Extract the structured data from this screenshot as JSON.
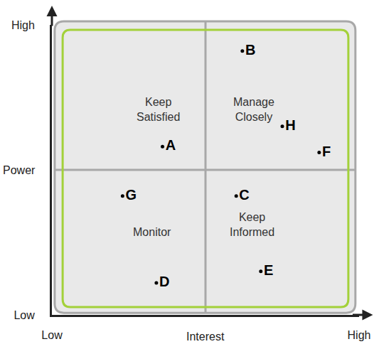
{
  "chart_data": {
    "type": "scatter",
    "x_label": "Interest",
    "y_label": "Power",
    "xlim": [
      0,
      10
    ],
    "ylim": [
      0,
      10
    ],
    "xticks": [
      {
        "value": 0,
        "label": "Low"
      },
      {
        "value": 10,
        "label": "High"
      }
    ],
    "yticks": [
      {
        "value": 0,
        "label": "Low"
      },
      {
        "value": 10,
        "label": "High"
      }
    ],
    "grid": false,
    "annotations": [
      "Keep Satisfied",
      "Manage Closely",
      "Monitor",
      "Keep Informed"
    ],
    "labels": [
      "A",
      "B",
      "C",
      "D",
      "E",
      "F",
      "G",
      "H"
    ],
    "x": [
      3.6,
      6.2,
      6.0,
      3.4,
      6.8,
      8.7,
      2.3,
      7.5
    ],
    "values": [
      5.8,
      9.1,
      4.1,
      1.1,
      1.5,
      5.6,
      4.1,
      6.5
    ],
    "color": "#000000",
    "marker": "circle"
  }
}
